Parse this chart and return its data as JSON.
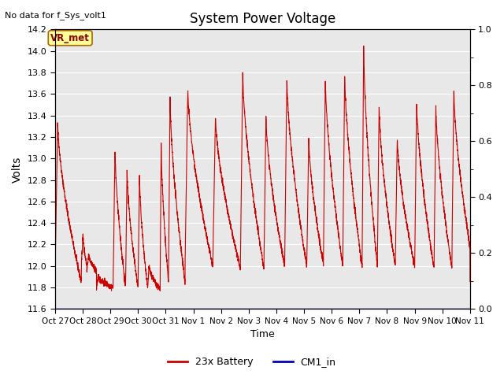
{
  "title": "System Power Voltage",
  "top_left_text": "No data for f_Sys_volt1",
  "ylabel_left": "Volts",
  "xlabel": "Time",
  "ylim_left": [
    11.6,
    14.2
  ],
  "ylim_right": [
    0.0,
    1.0
  ],
  "yticks_left": [
    11.6,
    11.8,
    12.0,
    12.2,
    12.4,
    12.6,
    12.8,
    13.0,
    13.2,
    13.4,
    13.6,
    13.8,
    14.0,
    14.2
  ],
  "yticks_right_major": [
    0.0,
    0.2,
    0.4,
    0.6,
    0.8,
    1.0
  ],
  "yticks_right_minor": [
    0.1,
    0.3,
    0.5,
    0.7,
    0.9
  ],
  "xtick_labels": [
    "Oct 27",
    "Oct 28",
    "Oct 29",
    "Oct 30",
    "Oct 31",
    "Nov 1",
    "Nov 2",
    "Nov 3",
    "Nov 4",
    "Nov 5",
    "Nov 6",
    "Nov 7",
    "Nov 8",
    "Nov 9",
    "Nov 10",
    "Nov 11"
  ],
  "battery_color": "#cc0000",
  "cm1_color": "#0000bb",
  "bg_color": "#e8e8e8",
  "grid_color": "#ffffff",
  "legend_battery": "23x Battery",
  "legend_cm1": "CM1_in",
  "vr_met_label": "VR_met",
  "vr_met_text_color": "#8B0000",
  "vr_met_bg": "#ffff99",
  "vr_met_border": "#aa6600"
}
